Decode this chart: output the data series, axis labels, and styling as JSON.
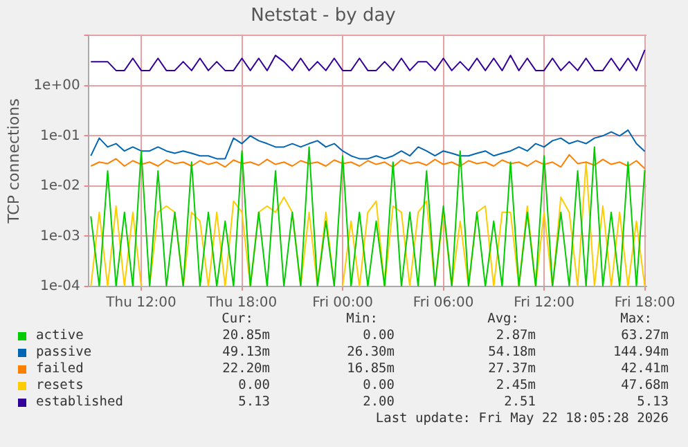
{
  "chart_data": {
    "type": "line",
    "title": "Netstat - by day",
    "ylabel": "TCP connections",
    "log": "y",
    "grid": true,
    "legend": "bottom",
    "marker": "none",
    "line_style": "solid",
    "x": [
      "2026-05-21T09:00",
      "2026-05-21T09:30",
      "2026-05-21T10:00",
      "2026-05-21T10:30",
      "2026-05-21T11:00",
      "2026-05-21T11:30",
      "2026-05-21T12:00",
      "2026-05-21T12:30",
      "2026-05-21T13:00",
      "2026-05-21T13:30",
      "2026-05-21T14:00",
      "2026-05-21T14:30",
      "2026-05-21T15:00",
      "2026-05-21T15:30",
      "2026-05-21T16:00",
      "2026-05-21T16:30",
      "2026-05-21T17:00",
      "2026-05-21T17:30",
      "2026-05-21T18:00",
      "2026-05-21T18:30",
      "2026-05-21T19:00",
      "2026-05-21T19:30",
      "2026-05-21T20:00",
      "2026-05-21T20:30",
      "2026-05-21T21:00",
      "2026-05-21T21:30",
      "2026-05-21T22:00",
      "2026-05-21T22:30",
      "2026-05-21T23:00",
      "2026-05-21T23:30",
      "2026-05-22T00:00",
      "2026-05-22T00:30",
      "2026-05-22T01:00",
      "2026-05-22T01:30",
      "2026-05-22T02:00",
      "2026-05-22T02:30",
      "2026-05-22T03:00",
      "2026-05-22T03:30",
      "2026-05-22T04:00",
      "2026-05-22T04:30",
      "2026-05-22T05:00",
      "2026-05-22T05:30",
      "2026-05-22T06:00",
      "2026-05-22T06:30",
      "2026-05-22T07:00",
      "2026-05-22T07:30",
      "2026-05-22T08:00",
      "2026-05-22T08:30",
      "2026-05-22T09:00",
      "2026-05-22T09:30",
      "2026-05-22T10:00",
      "2026-05-22T10:30",
      "2026-05-22T11:00",
      "2026-05-22T11:30",
      "2026-05-22T12:00",
      "2026-05-22T12:30",
      "2026-05-22T13:00",
      "2026-05-22T13:30",
      "2026-05-22T14:00",
      "2026-05-22T14:30",
      "2026-05-22T15:00",
      "2026-05-22T15:30",
      "2026-05-22T16:00",
      "2026-05-22T16:30",
      "2026-05-22T17:00",
      "2026-05-22T17:30",
      "2026-05-22T18:00"
    ],
    "xlim": [
      "2026-05-21T08:51",
      "2026-05-22T18:06"
    ],
    "xticks": [
      {
        "value": "2026-05-21T12:00",
        "label": "Thu 12:00"
      },
      {
        "value": "2026-05-21T18:00",
        "label": "Thu 18:00"
      },
      {
        "value": "2026-05-22T00:00",
        "label": "Fri 00:00"
      },
      {
        "value": "2026-05-22T06:00",
        "label": "Fri 06:00"
      },
      {
        "value": "2026-05-22T12:00",
        "label": "Fri 12:00"
      },
      {
        "value": "2026-05-22T18:00",
        "label": "Fri 18:00"
      }
    ],
    "ylim": [
      0.0001,
      10
    ],
    "yticks": [
      {
        "value": 0.0001,
        "label": "1e-04"
      },
      {
        "value": 0.001,
        "label": "1e-03"
      },
      {
        "value": 0.01,
        "label": "1e-02"
      },
      {
        "value": 0.1,
        "label": "1e-01"
      },
      {
        "value": 1,
        "label": "1e+00"
      },
      {
        "value": 10,
        "label": null
      }
    ],
    "series": [
      {
        "name": "active",
        "color": "#00cc00",
        "values": [
          0.0025,
          0.0001,
          0.02,
          0.0001,
          0.003,
          0.0001,
          0.05,
          0.0001,
          0.02,
          0.0001,
          0.003,
          0.0001,
          0.03,
          0.0001,
          0.003,
          0.0001,
          0.002,
          0.0001,
          0.05,
          0.0001,
          0.003,
          0.0001,
          0.02,
          0.0001,
          0.003,
          0.0001,
          0.06,
          0.0001,
          0.002,
          0.0001,
          0.04,
          0.0001,
          0.003,
          0.0001,
          0.002,
          0.0001,
          0.03,
          0.0001,
          0.003,
          0.0001,
          0.02,
          0.0001,
          0.004,
          0.0001,
          0.05,
          0.0001,
          0.003,
          0.0001,
          0.002,
          0.0001,
          0.03,
          0.0001,
          0.003,
          0.0001,
          0.04,
          0.0001,
          0.003,
          0.0001,
          0.02,
          0.0001,
          0.06,
          0.0001,
          0.003,
          0.0001,
          0.03,
          0.0001,
          0.0209
        ]
      },
      {
        "name": "passive",
        "color": "#0066b3",
        "values": [
          0.04,
          0.09,
          0.06,
          0.07,
          0.05,
          0.06,
          0.05,
          0.05,
          0.06,
          0.05,
          0.045,
          0.05,
          0.045,
          0.04,
          0.04,
          0.035,
          0.035,
          0.09,
          0.07,
          0.1,
          0.08,
          0.07,
          0.06,
          0.06,
          0.07,
          0.06,
          0.07,
          0.08,
          0.06,
          0.07,
          0.05,
          0.04,
          0.035,
          0.035,
          0.04,
          0.035,
          0.04,
          0.05,
          0.04,
          0.06,
          0.05,
          0.04,
          0.05,
          0.045,
          0.04,
          0.04,
          0.045,
          0.05,
          0.04,
          0.045,
          0.05,
          0.06,
          0.05,
          0.07,
          0.06,
          0.08,
          0.09,
          0.07,
          0.08,
          0.07,
          0.09,
          0.1,
          0.12,
          0.1,
          0.13,
          0.07,
          0.049
        ]
      },
      {
        "name": "failed",
        "color": "#ff8000",
        "values": [
          0.025,
          0.03,
          0.028,
          0.035,
          0.025,
          0.032,
          0.027,
          0.03,
          0.025,
          0.033,
          0.028,
          0.03,
          0.025,
          0.032,
          0.027,
          0.03,
          0.024,
          0.033,
          0.028,
          0.03,
          0.026,
          0.034,
          0.027,
          0.03,
          0.025,
          0.032,
          0.028,
          0.03,
          0.025,
          0.033,
          0.028,
          0.03,
          0.025,
          0.032,
          0.027,
          0.03,
          0.024,
          0.033,
          0.028,
          0.03,
          0.026,
          0.034,
          0.027,
          0.03,
          0.025,
          0.032,
          0.028,
          0.03,
          0.025,
          0.033,
          0.028,
          0.03,
          0.025,
          0.032,
          0.027,
          0.03,
          0.024,
          0.042,
          0.028,
          0.03,
          0.026,
          0.034,
          0.027,
          0.03,
          0.025,
          0.032,
          0.0222
        ]
      },
      {
        "name": "resets",
        "color": "#ffcc00",
        "values": [
          0.0001,
          0.003,
          0.0001,
          0.004,
          0.0001,
          0.003,
          0.0001,
          0.0001,
          0.003,
          0.004,
          0.003,
          0.0001,
          0.003,
          0.002,
          0.0001,
          0.003,
          0.0001,
          0.005,
          0.003,
          0.0001,
          0.003,
          0.004,
          0.003,
          0.006,
          0.003,
          0.0001,
          0.003,
          0.0001,
          0.003,
          0.0001,
          0.0001,
          0.002,
          0.0001,
          0.003,
          0.005,
          0.0001,
          0.004,
          0.003,
          0.0001,
          0.003,
          0.005,
          0.0001,
          0.003,
          0.0001,
          0.002,
          0.0001,
          0.003,
          0.004,
          0.0001,
          0.003,
          0.003,
          0.0001,
          0.004,
          0.0001,
          0.003,
          0.0001,
          0.006,
          0.003,
          0.0001,
          0.03,
          0.0001,
          0.004,
          0.0001,
          0.003,
          0.0001,
          0.002,
          0.0001
        ]
      },
      {
        "name": "established",
        "color": "#330099",
        "values": [
          3,
          3,
          3,
          2,
          2,
          3.5,
          2,
          2,
          3.5,
          2,
          2,
          3,
          2,
          3.5,
          2,
          3,
          2,
          2,
          3.5,
          2,
          3.5,
          2,
          4,
          3,
          2,
          3.5,
          2,
          3,
          2,
          3.5,
          2,
          2,
          3.5,
          2,
          2,
          3,
          2,
          3.5,
          2,
          3,
          3,
          2,
          3.5,
          2,
          3,
          2,
          3.5,
          2,
          3.5,
          2,
          4,
          2,
          3.5,
          2,
          2,
          3.5,
          2,
          3,
          2,
          3.5,
          2,
          2,
          3.5,
          2,
          3.5,
          2,
          5.13
        ]
      }
    ],
    "annotations": [
      "Cur:",
      "Min:",
      "Avg:",
      "Max:",
      "20.85m",
      "0.00",
      "2.87m",
      "63.27m",
      "49.13m",
      "26.30m",
      "54.18m",
      "144.94m",
      "22.20m",
      "16.85m",
      "27.37m",
      "42.41m",
      "0.00",
      "0.00",
      "2.45m",
      "47.68m",
      "5.13",
      "2.00",
      "2.51",
      "5.13",
      "Last update: Fri May 22 18:05:28 2026"
    ]
  }
}
